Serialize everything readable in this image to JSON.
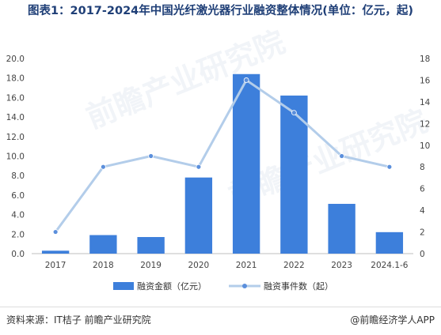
{
  "title": "图表1：2017-2024年中国光纤激光器行业融资整体情况(单位：亿元，起)",
  "footer": {
    "source": "资料来源：IT桔子 前瞻产业研究院",
    "brand": "@前瞻经济学人APP"
  },
  "watermark": "前瞻产业研究院",
  "chart_data": {
    "type": "bar",
    "categories": [
      "2017",
      "2018",
      "2019",
      "2020",
      "2021",
      "2022",
      "2023",
      "2024.1-6"
    ],
    "series": [
      {
        "name": "融资金额（亿元）",
        "type": "bar",
        "axis": "left",
        "color": "#3d7fdb",
        "values": [
          0.3,
          1.9,
          1.7,
          7.8,
          18.4,
          16.2,
          5.1,
          2.2
        ]
      },
      {
        "name": "融资事件数（起）",
        "type": "line",
        "axis": "right",
        "color": "#b3cdea",
        "values": [
          2,
          8,
          9,
          8,
          16,
          13,
          9,
          8
        ]
      }
    ],
    "y_left": {
      "min": 0,
      "max": 20,
      "step": 2,
      "ticks": [
        "0.0",
        "2.0",
        "4.0",
        "6.0",
        "8.0",
        "10.0",
        "12.0",
        "14.0",
        "16.0",
        "18.0",
        "20.0"
      ]
    },
    "y_right": {
      "min": 0,
      "max": 18,
      "step": 2,
      "ticks": [
        "0",
        "2",
        "4",
        "6",
        "8",
        "10",
        "12",
        "14",
        "16",
        "18"
      ]
    },
    "grid": false,
    "legend_position": "bottom"
  }
}
